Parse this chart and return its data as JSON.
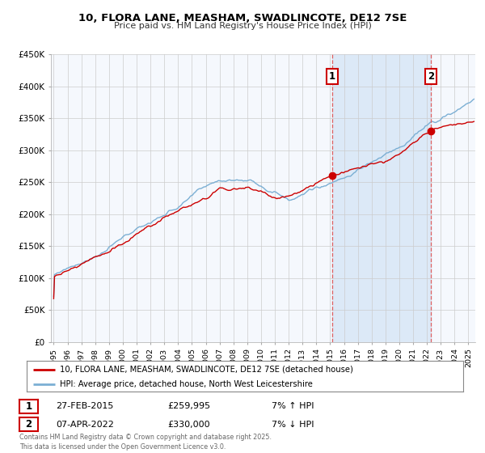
{
  "title": "10, FLORA LANE, MEASHAM, SWADLINCOTE, DE12 7SE",
  "subtitle": "Price paid vs. HM Land Registry's House Price Index (HPI)",
  "legend_line1": "10, FLORA LANE, MEASHAM, SWADLINCOTE, DE12 7SE (detached house)",
  "legend_line2": "HPI: Average price, detached house, North West Leicestershire",
  "hpi_color": "#7bafd4",
  "price_color": "#cc0000",
  "vline_color": "#e06060",
  "grid_color": "#cccccc",
  "bg_color": "#f5f8fd",
  "highlight_color": "#dce9f7",
  "annotation_box_color": "#cc0000",
  "footnote": "Contains HM Land Registry data © Crown copyright and database right 2025.\nThis data is licensed under the Open Government Licence v3.0.",
  "transaction1": {
    "label": "1",
    "date": "27-FEB-2015",
    "price": "£259,995",
    "hpi_change": "7% ↑ HPI"
  },
  "transaction2": {
    "label": "2",
    "date": "07-APR-2022",
    "price": "£330,000",
    "hpi_change": "7% ↓ HPI"
  },
  "vline1_x": 2015.15,
  "vline2_x": 2022.27,
  "marker1_y": 259995,
  "marker2_y": 330000,
  "ylim": [
    0,
    450000
  ],
  "xlim_start": 1994.8,
  "xlim_end": 2025.5
}
